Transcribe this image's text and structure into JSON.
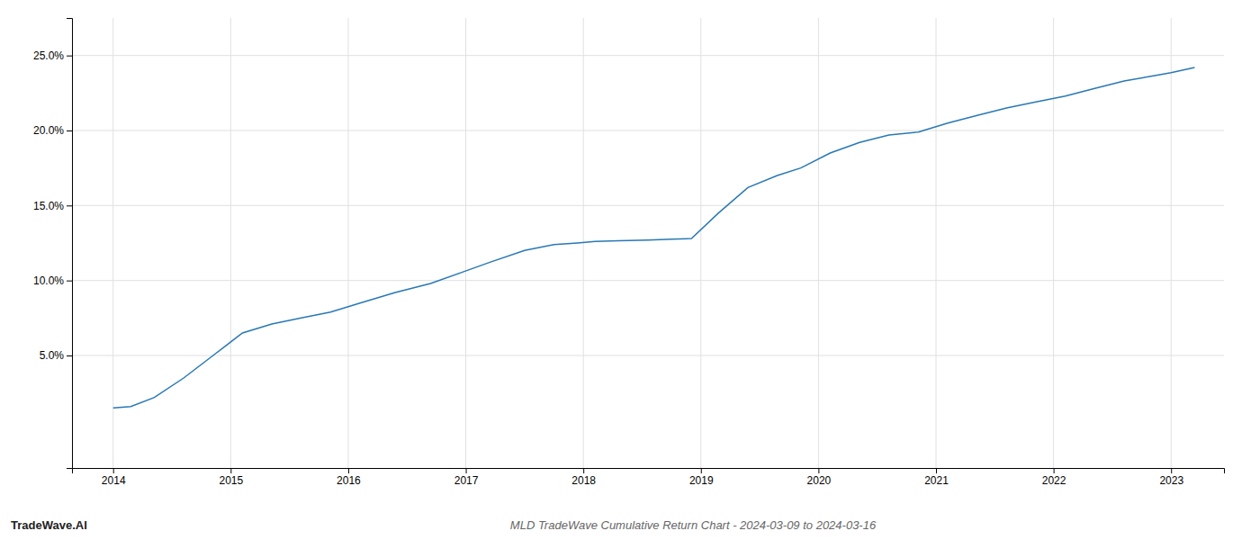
{
  "chart_data": {
    "type": "line",
    "title": "MLD TradeWave Cumulative Return Chart - 2024-03-09 to 2024-03-16",
    "annotations": [
      "TradeWave.AI"
    ],
    "x": [
      2014.0,
      2014.15,
      2014.35,
      2014.6,
      2014.85,
      2015.1,
      2015.35,
      2015.6,
      2015.85,
      2016.1,
      2016.4,
      2016.7,
      2016.95,
      2017.2,
      2017.5,
      2017.75,
      2017.95,
      2018.1,
      2018.3,
      2018.55,
      2018.75,
      2018.92,
      2019.15,
      2019.4,
      2019.65,
      2019.85,
      2020.1,
      2020.35,
      2020.6,
      2020.85,
      2021.1,
      2021.35,
      2021.6,
      2021.85,
      2022.1,
      2022.35,
      2022.6,
      2022.85,
      2023.0,
      2023.2
    ],
    "values": [
      1.5,
      1.6,
      2.2,
      3.5,
      5.0,
      6.5,
      7.1,
      7.5,
      7.9,
      8.5,
      9.2,
      9.8,
      10.5,
      11.2,
      12.0,
      12.4,
      12.5,
      12.6,
      12.65,
      12.7,
      12.75,
      12.8,
      14.5,
      16.2,
      17.0,
      17.5,
      18.5,
      19.2,
      19.7,
      19.9,
      20.5,
      21.0,
      21.5,
      21.9,
      22.3,
      22.8,
      23.3,
      23.65,
      23.85,
      24.2
    ],
    "color": "#2878b5",
    "xlim": [
      2013.65,
      2023.45
    ],
    "xticks": [
      2014,
      2015,
      2016,
      2017,
      2018,
      2019,
      2020,
      2021,
      2022,
      2023
    ],
    "ylim": [
      -2.5,
      27.5
    ],
    "yticks": [
      {
        "value": 5.0,
        "label": "5.0%"
      },
      {
        "value": 10.0,
        "label": "10.0%"
      },
      {
        "value": 15.0,
        "label": "15.0%"
      },
      {
        "value": 20.0,
        "label": "20.0%"
      },
      {
        "value": 25.0,
        "label": "25.0%"
      }
    ],
    "grid": true
  }
}
